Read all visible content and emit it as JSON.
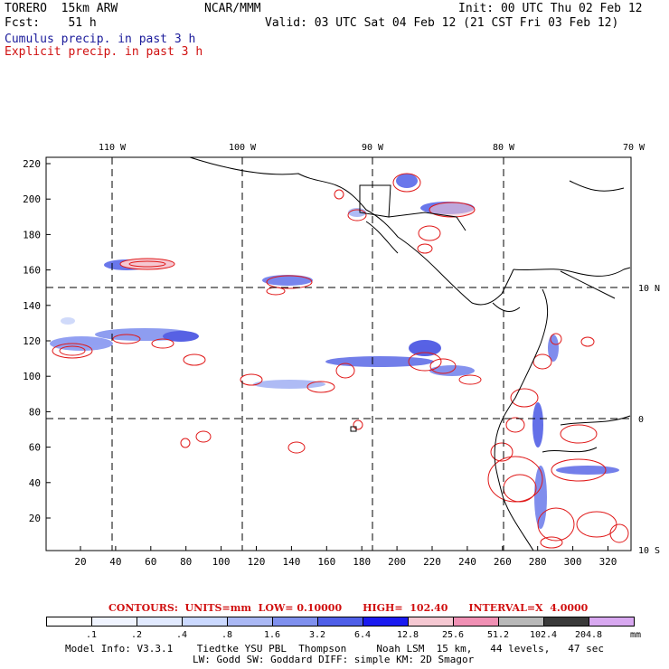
{
  "header": {
    "model": "TORERO  15km ARW",
    "forecast": "Fcst:    51 h",
    "center": "NCAR/MMM",
    "init": "Init: 00 UTC Thu 02 Feb 12",
    "valid": "Valid: 03 UTC Sat 04 Feb 12 (21 CST Fri 03 Feb 12)",
    "field1": "Cumulus precip. in past 3 h",
    "field2": "Explicit precip. in past 3 h",
    "field1_color": "#1a1a9a",
    "field2_color": "#d01010"
  },
  "map": {
    "lon_labels": [
      "110 W",
      "100 W",
      "90 W",
      "80 W",
      "70 W"
    ],
    "lat_labels": [
      "10 N",
      "0",
      "10 S"
    ],
    "y_ticks": [
      "220",
      "200",
      "180",
      "160",
      "140",
      "120",
      "100",
      "80",
      "60",
      "40",
      "20"
    ],
    "x_ticks": [
      "20",
      "40",
      "60",
      "80",
      "100",
      "120",
      "140",
      "160",
      "180",
      "200",
      "220",
      "240",
      "260",
      "280",
      "300",
      "320"
    ]
  },
  "contours": {
    "text": "CONTOURS:  UNITS=mm  LOW= 0.10000      HIGH=  102.40      INTERVAL=X  4.0000",
    "color": "#d01010"
  },
  "colorbar": {
    "labels": [
      ".1",
      ".2",
      ".4",
      ".8",
      "1.6",
      "3.2",
      "6.4",
      "12.8",
      "25.6",
      "51.2",
      "102.4",
      "204.8"
    ],
    "unit": "mm",
    "colors": [
      "#ffffff",
      "#ffffff",
      "#f0f4ff",
      "#e2eaff",
      "#cbd9ff",
      "#aab8f4",
      "#7f90ee",
      "#4f5fe8",
      "#1a1af0",
      "#f5c8d2",
      "#f090b4",
      "#b8b8b8",
      "#3a3a3a",
      "#d8a8f0"
    ]
  },
  "footer": {
    "line1": "Model Info: V3.3.1    Tiedtke YSU PBL  Thompson     Noah LSM  15 km,   44 levels,   47 sec",
    "line2": "LW: Godd SW: Goddard DIFF: simple KM: 2D Smagor"
  }
}
